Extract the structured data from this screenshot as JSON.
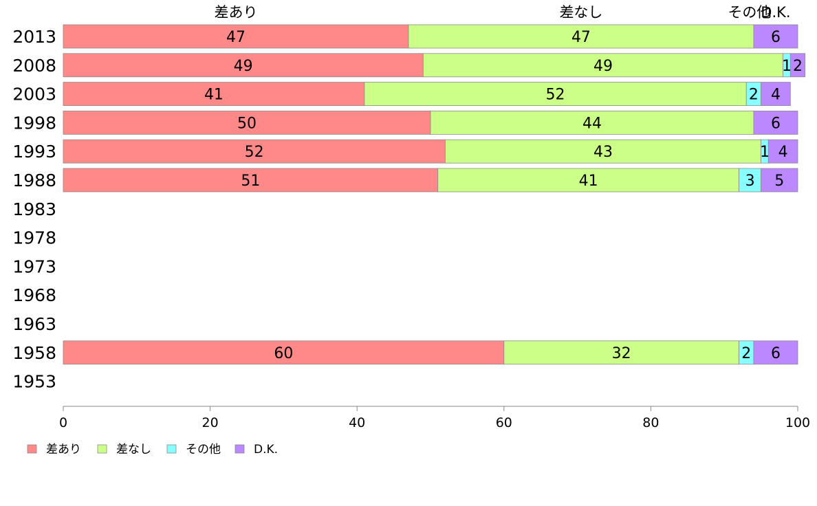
{
  "chart_data": {
    "type": "bar",
    "orientation": "horizontal",
    "stacked": true,
    "categories": [
      "2013",
      "2008",
      "2003",
      "1998",
      "1993",
      "1988",
      "1983",
      "1978",
      "1973",
      "1968",
      "1963",
      "1958",
      "1953"
    ],
    "series": [
      {
        "name": "差あり",
        "color": "#ff8888",
        "values": [
          47,
          49,
          41,
          50,
          52,
          51,
          null,
          null,
          null,
          null,
          null,
          60,
          null
        ]
      },
      {
        "name": "差なし",
        "color": "#ccff88",
        "values": [
          47,
          49,
          52,
          44,
          43,
          41,
          null,
          null,
          null,
          null,
          null,
          32,
          null
        ]
      },
      {
        "name": "その他",
        "color": "#88ffff",
        "values": [
          0,
          1,
          2,
          0,
          1,
          3,
          null,
          null,
          null,
          null,
          null,
          2,
          null
        ]
      },
      {
        "name": "D.K.",
        "color": "#bb88ff",
        "values": [
          6,
          2,
          4,
          6,
          4,
          5,
          null,
          null,
          null,
          null,
          null,
          6,
          null
        ]
      }
    ],
    "data_labels": [
      [
        "47",
        "47",
        "",
        "6"
      ],
      [
        "49",
        "49",
        "1",
        "2"
      ],
      [
        "41",
        "52",
        "2",
        "4"
      ],
      [
        "50",
        "44",
        "",
        "6"
      ],
      [
        "52",
        "43",
        "1",
        "4"
      ],
      [
        "51",
        "41",
        "3",
        "5"
      ],
      null,
      null,
      null,
      null,
      null,
      [
        "60",
        "32",
        "2",
        "6"
      ],
      null
    ],
    "top_labels": [
      "差あり",
      "差なし",
      "その他",
      "D.K."
    ],
    "xlim": [
      0,
      100
    ],
    "xticks": [
      "0",
      "20",
      "40",
      "60",
      "80",
      "100"
    ],
    "legend_position": "bottom-left",
    "grid": false
  }
}
